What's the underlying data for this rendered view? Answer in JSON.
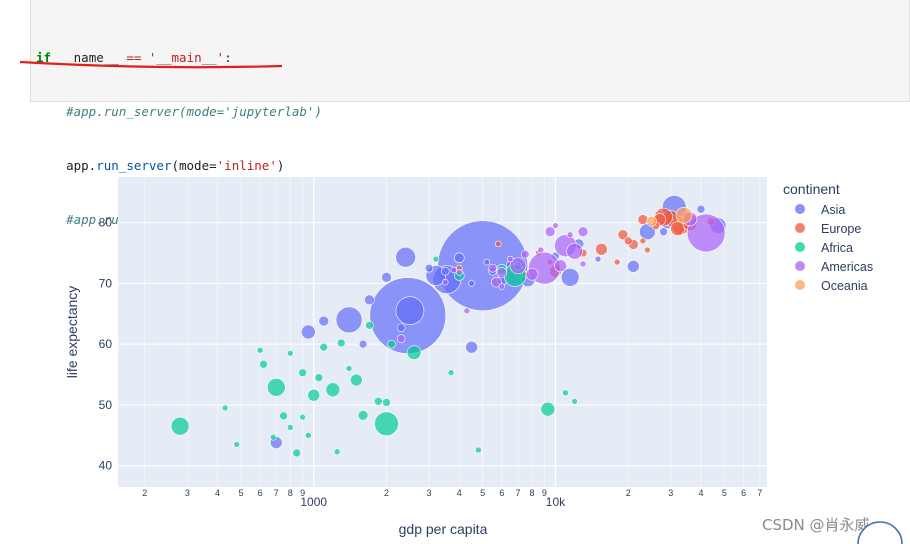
{
  "code": {
    "line1": {
      "kw": "if",
      "rest1": " __name__ ",
      "op": "==",
      "sp": " ",
      "str": "'__main__'",
      "colon": ":"
    },
    "line2": "    #app.run_server(mode='jupyterlab')",
    "line3": {
      "indent": "    ",
      "obj": "app.",
      "fn": "run_server",
      "open": "(mode=",
      "str": "'inline'",
      "close": ")"
    },
    "line4": "    #app.run_server(mode='external')"
  },
  "chart_data": {
    "type": "scatter",
    "title": "",
    "xlabel": "gdp per capita",
    "ylabel": "life expectancy",
    "x_scale": "log",
    "xlim": [
      155,
      75000
    ],
    "ylim": [
      36.5,
      87.5
    ],
    "y_ticks": [
      40,
      50,
      60,
      70,
      80
    ],
    "x_major_ticks": [
      {
        "value": 1000,
        "label": "1000"
      },
      {
        "value": 10000,
        "label": "10k"
      }
    ],
    "x_minor_ticks": [
      {
        "value": 200,
        "label": "2"
      },
      {
        "value": 300,
        "label": "3"
      },
      {
        "value": 400,
        "label": "4"
      },
      {
        "value": 500,
        "label": "5"
      },
      {
        "value": 600,
        "label": "6"
      },
      {
        "value": 700,
        "label": "7"
      },
      {
        "value": 800,
        "label": "8"
      },
      {
        "value": 900,
        "label": "9"
      },
      {
        "value": 2000,
        "label": "2"
      },
      {
        "value": 3000,
        "label": "3"
      },
      {
        "value": 4000,
        "label": "4"
      },
      {
        "value": 5000,
        "label": "5"
      },
      {
        "value": 6000,
        "label": "6"
      },
      {
        "value": 7000,
        "label": "7"
      },
      {
        "value": 8000,
        "label": "8"
      },
      {
        "value": 9000,
        "label": "9"
      },
      {
        "value": 20000,
        "label": "2"
      },
      {
        "value": 30000,
        "label": "3"
      },
      {
        "value": 40000,
        "label": "4"
      },
      {
        "value": 50000,
        "label": "5"
      },
      {
        "value": 60000,
        "label": "6"
      },
      {
        "value": 70000,
        "label": "7"
      }
    ],
    "grid": true,
    "legend": {
      "title": "continent",
      "placement": "right"
    },
    "series": [
      {
        "name": "Asia",
        "color": "#636efa",
        "points": [
          [
            5000,
            72.9,
            45
          ],
          [
            2450,
            64.7,
            38
          ],
          [
            2500,
            65.5,
            14
          ],
          [
            3550,
            70.6,
            14
          ],
          [
            1400,
            64.0,
            13
          ],
          [
            3200,
            71.3,
            10
          ],
          [
            2400,
            74.3,
            10
          ],
          [
            31000,
            82.5,
            12
          ],
          [
            11500,
            71.0,
            9
          ],
          [
            24000,
            78.5,
            8
          ],
          [
            21000,
            72.8,
            6
          ],
          [
            700,
            43.8,
            6
          ],
          [
            950,
            62.0,
            7
          ],
          [
            2000,
            71.0,
            5
          ],
          [
            4500,
            59.5,
            6
          ],
          [
            1100,
            63.8,
            5
          ],
          [
            4000,
            74.2,
            5
          ],
          [
            1700,
            67.3,
            5
          ],
          [
            6000,
            70.5,
            5
          ],
          [
            7700,
            70.6,
            7
          ],
          [
            47000,
            79.5,
            8
          ],
          [
            29000,
            80.0,
            6
          ],
          [
            3000,
            72.5,
            4
          ],
          [
            40000,
            82.2,
            4
          ],
          [
            28000,
            78.5,
            4
          ],
          [
            12500,
            76.5,
            5
          ],
          [
            10000,
            74.5,
            4
          ],
          [
            1600,
            60.0,
            4
          ],
          [
            5500,
            72.0,
            4
          ],
          [
            2300,
            62.7,
            4
          ],
          [
            4500,
            70.0,
            3
          ],
          [
            5200,
            73.5,
            3
          ],
          [
            3500,
            72.0,
            4
          ],
          [
            6500,
            73.0,
            4
          ],
          [
            15000,
            74.0,
            3
          ]
        ]
      },
      {
        "name": "Europe",
        "color": "#ef553b",
        "points": [
          [
            33000,
            79.5,
            9
          ],
          [
            30000,
            80.7,
            8
          ],
          [
            28000,
            80.9,
            9
          ],
          [
            32000,
            79.0,
            7
          ],
          [
            36000,
            79.8,
            7
          ],
          [
            27000,
            80.5,
            6
          ],
          [
            23000,
            80.5,
            5
          ],
          [
            15500,
            75.6,
            6
          ],
          [
            21000,
            76.4,
            5
          ],
          [
            19000,
            78.0,
            5
          ],
          [
            10000,
            72.0,
            6
          ],
          [
            35000,
            81.0,
            5
          ],
          [
            37000,
            80.6,
            4
          ],
          [
            26000,
            79.5,
            4
          ],
          [
            20000,
            77.0,
            4
          ],
          [
            18000,
            73.5,
            3
          ],
          [
            7500,
            71.5,
            3
          ],
          [
            8500,
            75.0,
            3
          ],
          [
            13000,
            75.0,
            4
          ],
          [
            44000,
            80.2,
            4
          ],
          [
            24000,
            75.5,
            3
          ],
          [
            4000,
            72.5,
            3
          ],
          [
            5800,
            76.5,
            3
          ],
          [
            23000,
            77.0,
            3
          ],
          [
            9500,
            73.5,
            3
          ]
        ]
      },
      {
        "name": "Africa",
        "color": "#00cc96",
        "points": [
          [
            6800,
            71.3,
            11
          ],
          [
            2000,
            46.9,
            12
          ],
          [
            9300,
            49.3,
            7
          ],
          [
            700,
            52.9,
            9
          ],
          [
            1200,
            52.5,
            7
          ],
          [
            1500,
            54.1,
            6
          ],
          [
            2600,
            58.6,
            7
          ],
          [
            280,
            46.5,
            9
          ],
          [
            1600,
            48.3,
            5
          ],
          [
            1850,
            50.6,
            4
          ],
          [
            2000,
            50.4,
            4
          ],
          [
            4000,
            71.3,
            5
          ],
          [
            6000,
            72.3,
            5
          ],
          [
            7000,
            72.8,
            4
          ],
          [
            1100,
            59.5,
            4
          ],
          [
            900,
            55.3,
            4
          ],
          [
            750,
            48.2,
            4
          ],
          [
            1000,
            51.6,
            6
          ],
          [
            620,
            56.7,
            4
          ],
          [
            850,
            42.1,
            4
          ],
          [
            430,
            49.5,
            3
          ],
          [
            480,
            43.5,
            3
          ],
          [
            1250,
            42.3,
            3
          ],
          [
            4800,
            42.6,
            3
          ],
          [
            1050,
            54.5,
            4
          ],
          [
            2100,
            60.0,
            4
          ],
          [
            1700,
            63.1,
            4
          ],
          [
            1300,
            60.2,
            4
          ],
          [
            900,
            48.0,
            3
          ],
          [
            800,
            46.3,
            3
          ],
          [
            680,
            44.7,
            3
          ],
          [
            950,
            45.0,
            3
          ],
          [
            1400,
            56.0,
            3
          ],
          [
            600,
            59.0,
            3
          ],
          [
            3700,
            55.3,
            3
          ],
          [
            800,
            58.5,
            3
          ],
          [
            11000,
            52.0,
            3
          ],
          [
            12000,
            50.6,
            3
          ],
          [
            3200,
            74.0,
            3
          ]
        ]
      },
      {
        "name": "Americas",
        "color": "#ab63fa",
        "points": [
          [
            42000,
            78.3,
            19
          ],
          [
            9000,
            72.5,
            16
          ],
          [
            11000,
            76.2,
            11
          ],
          [
            7000,
            72.9,
            8
          ],
          [
            12000,
            75.3,
            8
          ],
          [
            8000,
            71.5,
            6
          ],
          [
            9500,
            78.5,
            5
          ],
          [
            6000,
            71.8,
            5
          ],
          [
            5700,
            70.2,
            5
          ],
          [
            10500,
            72.9,
            6
          ],
          [
            36000,
            80.6,
            7
          ],
          [
            13000,
            78.5,
            5
          ],
          [
            5500,
            72.5,
            4
          ],
          [
            7500,
            74.8,
            4
          ],
          [
            2300,
            60.9,
            4
          ],
          [
            4300,
            65.5,
            3
          ],
          [
            3500,
            70.2,
            3
          ],
          [
            4000,
            71.8,
            3
          ],
          [
            8700,
            75.5,
            3
          ],
          [
            6500,
            74.0,
            3
          ],
          [
            10000,
            79.5,
            3
          ],
          [
            11500,
            78.0,
            3
          ],
          [
            6000,
            69.5,
            3
          ],
          [
            13000,
            73.2,
            3
          ],
          [
            3800,
            72.2,
            3
          ]
        ]
      },
      {
        "name": "Oceania",
        "color": "#ffa15a",
        "points": [
          [
            34000,
            81.2,
            8
          ],
          [
            25000,
            80.2,
            5
          ]
        ]
      }
    ]
  },
  "watermark": "CSDN @肖永威"
}
